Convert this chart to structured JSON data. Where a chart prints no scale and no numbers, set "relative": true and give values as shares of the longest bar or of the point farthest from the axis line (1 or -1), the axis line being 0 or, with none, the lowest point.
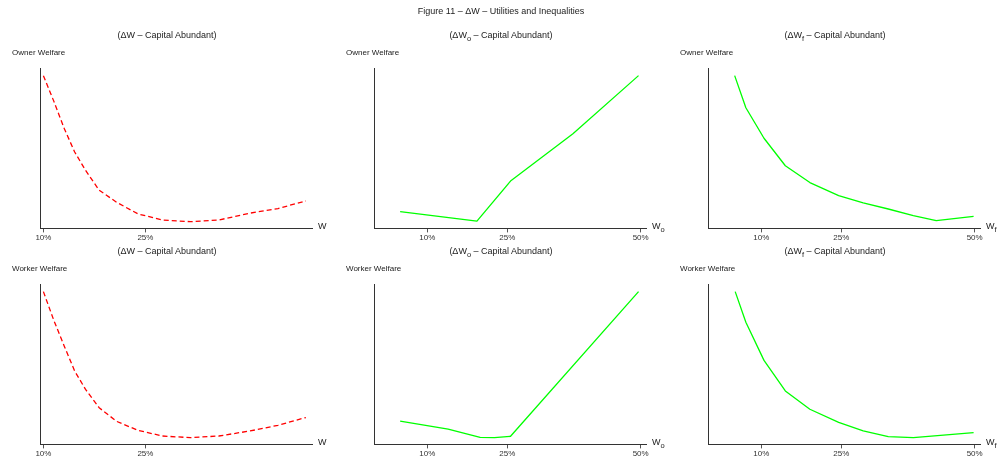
{
  "chart_data": [
    {
      "type": "line",
      "title": "(ΔW – Capital Abundant)",
      "annotations": [
        "Figure 11 – ΔW – Utilities and Inequalities"
      ],
      "ylabel": "Owner Welfare",
      "xlabel": "W",
      "relative": true,
      "legend": false,
      "grid": false,
      "marker": "none",
      "line_style": "dashed",
      "xlim": [
        9.5,
        49.5
      ],
      "xticks": [
        {
          "value": 10,
          "label": "10%"
        },
        {
          "value": 25,
          "label": "25%"
        }
      ],
      "series": [
        {
          "color": "#ff0000",
          "x": [
            10.0,
            11.55,
            13.1,
            14.6,
            16.2,
            18.2,
            20.8,
            23.9,
            27.5,
            31.6,
            35.8,
            40.4,
            44.5,
            48.6
          ],
          "values": [
            1,
            0.83,
            0.65,
            0.5,
            0.38,
            0.25,
            0.17,
            0.095,
            0.055,
            0.044,
            0.055,
            0.1,
            0.13,
            0.18
          ]
        }
      ]
    },
    {
      "type": "line",
      "title": "(ΔW$_{o}$ – Capital Abundant)",
      "ylabel": "Owner Welfare",
      "xlabel": "W$_{o}$",
      "relative": true,
      "legend": false,
      "grid": false,
      "marker": "none",
      "line_style": "solid",
      "xlim": [
        0,
        51
      ],
      "xticks": [
        {
          "value": 10,
          "label": "10%"
        },
        {
          "value": 25,
          "label": "25%"
        },
        {
          "value": 50,
          "label": "50%"
        }
      ],
      "series": [
        {
          "color": "#00ff00",
          "x": [
            4.9,
            19.3,
            25.6,
            37.3,
            49.6
          ],
          "values": [
            0.11,
            0.048,
            0.31,
            0.62,
            1
          ]
        }
      ]
    },
    {
      "type": "line",
      "title": "(ΔW$_{f}$ – Capital Abundant)",
      "ylabel": "Owner Welfare",
      "xlabel": "W$_{f}$",
      "relative": true,
      "legend": false,
      "grid": false,
      "marker": "none",
      "line_style": "solid",
      "xlim": [
        0,
        51
      ],
      "xticks": [
        {
          "value": 10,
          "label": "10%"
        },
        {
          "value": 25,
          "label": "25%"
        },
        {
          "value": 50,
          "label": "50%"
        }
      ],
      "series": [
        {
          "color": "#00ff00",
          "x": [
            5.0,
            7.1,
            10.5,
            14.5,
            19.1,
            24.5,
            29.1,
            33.8,
            38.5,
            42.8,
            49.8
          ],
          "values": [
            1,
            0.79,
            0.59,
            0.41,
            0.3,
            0.215,
            0.167,
            0.127,
            0.084,
            0.051,
            0.079
          ]
        }
      ]
    },
    {
      "type": "line",
      "title": "(ΔW – Capital Abundant)",
      "ylabel": "Worker Welfare",
      "xlabel": "W",
      "relative": true,
      "legend": false,
      "grid": false,
      "marker": "none",
      "line_style": "dashed",
      "xlim": [
        9.5,
        49.5
      ],
      "xticks": [
        {
          "value": 10,
          "label": "10%"
        },
        {
          "value": 25,
          "label": "25%"
        }
      ],
      "series": [
        {
          "color": "#ff0000",
          "x": [
            10.0,
            11.55,
            13.1,
            14.6,
            16.2,
            18.2,
            20.8,
            23.9,
            27.5,
            31.6,
            35.8,
            40.4,
            44.5,
            48.6
          ],
          "values": [
            1,
            0.81,
            0.64,
            0.48,
            0.36,
            0.24,
            0.15,
            0.092,
            0.055,
            0.044,
            0.055,
            0.088,
            0.125,
            0.176
          ]
        }
      ]
    },
    {
      "type": "line",
      "title": "(ΔW$_{o}$ – Capital Abundant)",
      "ylabel": "Worker Welfare",
      "xlabel": "W$_{o}$",
      "relative": true,
      "legend": false,
      "grid": false,
      "marker": "none",
      "line_style": "solid",
      "xlim": [
        0,
        51
      ],
      "xticks": [
        {
          "value": 10,
          "label": "10%"
        },
        {
          "value": 25,
          "label": "25%"
        },
        {
          "value": 50,
          "label": "50%"
        }
      ],
      "series": [
        {
          "color": "#00ff00",
          "x": [
            4.9,
            13.9,
            19.9,
            22.6,
            25.6,
            49.6
          ],
          "values": [
            0.153,
            0.1,
            0.046,
            0.044,
            0.053,
            1
          ]
        }
      ]
    },
    {
      "type": "line",
      "title": "(ΔW$_{f}$ – Capital Abundant)",
      "ylabel": "Worker Welfare",
      "xlabel": "W$_{f}$",
      "relative": true,
      "legend": false,
      "grid": false,
      "marker": "none",
      "line_style": "solid",
      "xlim": [
        0,
        51
      ],
      "xticks": [
        {
          "value": 10,
          "label": "10%"
        },
        {
          "value": 25,
          "label": "25%"
        },
        {
          "value": 50,
          "label": "50%"
        }
      ],
      "series": [
        {
          "color": "#00ff00",
          "x": [
            5.1,
            7.1,
            10.5,
            14.5,
            19.1,
            24.5,
            29.1,
            33.8,
            38.5,
            49.8
          ],
          "values": [
            1,
            0.8,
            0.55,
            0.35,
            0.23,
            0.144,
            0.088,
            0.051,
            0.044,
            0.077
          ]
        }
      ]
    }
  ]
}
